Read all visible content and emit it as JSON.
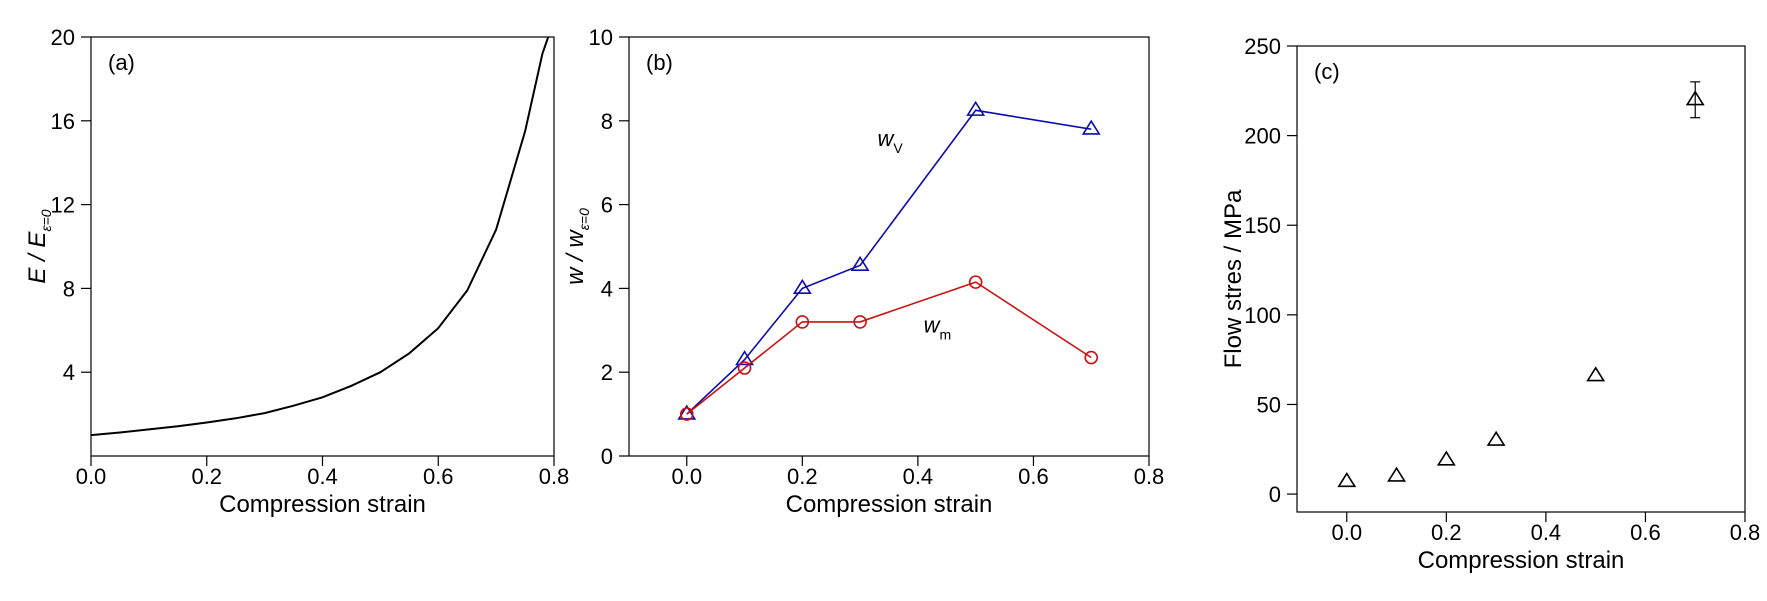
{
  "chart_data": [
    {
      "panel": "(a)",
      "type": "line",
      "xlabel": "Compression strain",
      "ylabel": {
        "main": "E / E",
        "subscript": "ε=0"
      },
      "xlim": [
        0,
        0.8
      ],
      "ylim": [
        0,
        20
      ],
      "xticks": [
        0.0,
        0.2,
        0.4,
        0.6,
        0.8
      ],
      "xticklabels": [
        "0.0",
        "0.2",
        "0.4",
        "0.6",
        "0.8"
      ],
      "yticks": [
        4,
        8,
        12,
        16,
        20
      ],
      "yticklabels": [
        "4",
        "8",
        "12",
        "16",
        "20"
      ],
      "series": [
        {
          "color": "#000000",
          "marker": "none",
          "x": [
            0.0,
            0.05,
            0.1,
            0.15,
            0.2,
            0.25,
            0.3,
            0.35,
            0.4,
            0.45,
            0.5,
            0.55,
            0.6,
            0.65,
            0.7,
            0.75,
            0.78,
            0.79
          ],
          "y": [
            1.0,
            1.12,
            1.27,
            1.42,
            1.6,
            1.8,
            2.05,
            2.4,
            2.8,
            3.35,
            4.0,
            4.9,
            6.1,
            7.9,
            10.8,
            15.5,
            19.2,
            20.0
          ]
        }
      ],
      "annotations": [],
      "grid": false
    },
    {
      "panel": "(b)",
      "type": "line",
      "xlabel": "Compression strain",
      "ylabel": {
        "main": "w / w",
        "subscript": "ε=0"
      },
      "xlim": [
        -0.1,
        0.8
      ],
      "ylim": [
        0,
        10
      ],
      "xticks": [
        0.0,
        0.2,
        0.4,
        0.6,
        0.8
      ],
      "xticklabels": [
        "0.0",
        "0.2",
        "0.4",
        "0.6",
        "0.8"
      ],
      "yticks": [
        0,
        2,
        4,
        6,
        8,
        10
      ],
      "yticklabels": [
        "0",
        "2",
        "4",
        "6",
        "8",
        "10"
      ],
      "series": [
        {
          "color": "#0b0bb0",
          "marker": "triangle",
          "x": [
            0.0,
            0.1,
            0.2,
            0.3,
            0.5,
            0.7
          ],
          "y": [
            1.0,
            2.3,
            4.0,
            4.55,
            8.25,
            7.8
          ]
        },
        {
          "color": "#cc1111",
          "marker": "circle",
          "x": [
            0.0,
            0.1,
            0.2,
            0.3,
            0.5,
            0.7
          ],
          "y": [
            1.0,
            2.1,
            3.2,
            3.2,
            4.15,
            2.35
          ]
        }
      ],
      "annotations": [
        {
          "main": "w",
          "subscript": "V",
          "x": 0.33,
          "y": 7.4
        },
        {
          "main": "w",
          "subscript": "m",
          "x": 0.41,
          "y": 2.95
        }
      ],
      "grid": false
    },
    {
      "panel": "(c)",
      "type": "scatter",
      "xlabel": "Compression strain",
      "ylabel": "Flow stres / MPa",
      "xlim": [
        -0.1,
        0.8
      ],
      "ylim": [
        -10,
        250
      ],
      "xticks": [
        0.0,
        0.2,
        0.4,
        0.6,
        0.8
      ],
      "xticklabels": [
        "0.0",
        "0.2",
        "0.4",
        "0.6",
        "0.8"
      ],
      "yticks": [
        0,
        50,
        100,
        150,
        200,
        250
      ],
      "yticklabels": [
        "0",
        "50",
        "100",
        "150",
        "200",
        "250"
      ],
      "series": [
        {
          "color": "#000000",
          "marker": "triangle",
          "x": [
            0.0,
            0.1,
            0.2,
            0.3,
            0.5,
            0.7
          ],
          "y": [
            7,
            10,
            19,
            30,
            66,
            220
          ],
          "error_y": [
            0,
            0,
            0,
            0,
            0,
            10
          ]
        }
      ],
      "annotations": [],
      "grid": false
    }
  ]
}
